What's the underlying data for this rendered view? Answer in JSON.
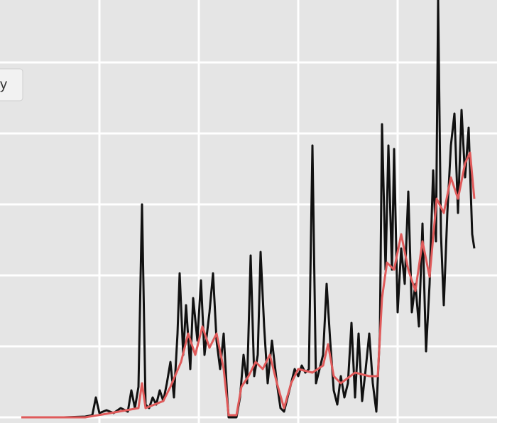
{
  "chart_data": {
    "type": "line",
    "series": [
      {
        "name": "y",
        "color": "#111111",
        "x": [
          30,
          60,
          90,
          120,
          130,
          135,
          140,
          150,
          160,
          170,
          180,
          185,
          190,
          195,
          200,
          205,
          210,
          215,
          220,
          225,
          230,
          235,
          240,
          245,
          250,
          253,
          258,
          262,
          268,
          272,
          278,
          283,
          288,
          295,
          300,
          305,
          310,
          315,
          320,
          322,
          333,
          338,
          343,
          348,
          353,
          358,
          363,
          367,
          372,
          377,
          383,
          390,
          395,
          400,
          405,
          410,
          415,
          420,
          425,
          430,
          435,
          440,
          445,
          450,
          455,
          460,
          465,
          470,
          475,
          480,
          485,
          490,
          495,
          500,
          505,
          510,
          515,
          520,
          525,
          530,
          535,
          538,
          543,
          547,
          552,
          555,
          560,
          565,
          570,
          575,
          580,
          585,
          590,
          595,
          600,
          605,
          610,
          614,
          617,
          621,
          625,
          630,
          635,
          640,
          645,
          650,
          655,
          660,
          665,
          668
        ],
        "values": [
          0,
          0,
          0,
          1,
          3,
          28,
          6,
          10,
          6,
          13,
          8,
          38,
          13,
          43,
          300,
          18,
          13,
          28,
          18,
          38,
          23,
          48,
          78,
          28,
          118,
          203,
          88,
          158,
          68,
          168,
          108,
          193,
          88,
          148,
          203,
          108,
          68,
          118,
          28,
          0,
          0,
          28,
          88,
          48,
          228,
          58,
          88,
          233,
          128,
          48,
          108,
          48,
          13,
          8,
          28,
          48,
          68,
          58,
          73,
          63,
          68,
          383,
          48,
          68,
          88,
          188,
          108,
          38,
          18,
          58,
          28,
          48,
          133,
          28,
          118,
          23,
          68,
          118,
          48,
          8,
          118,
          413,
          208,
          383,
          208,
          378,
          148,
          238,
          188,
          318,
          148,
          188,
          128,
          273,
          93,
          188,
          348,
          248,
          588,
          258,
          158,
          288,
          383,
          428,
          288,
          433,
          338,
          408,
          258,
          238
        ]
      },
      {
        "color": "#e05a5a",
        "x": [
          30,
          120,
          150,
          195,
          200,
          205,
          230,
          240,
          255,
          265,
          275,
          285,
          295,
          305,
          315,
          322,
          333,
          340,
          350,
          360,
          370,
          380,
          390,
          400,
          410,
          420,
          440,
          455,
          462,
          470,
          480,
          500,
          520,
          532,
          538,
          545,
          555,
          565,
          575,
          585,
          595,
          605,
          615,
          625,
          635,
          645,
          655,
          662,
          668
        ],
        "values": [
          0,
          0,
          5,
          13,
          48,
          13,
          23,
          43,
          78,
          118,
          88,
          128,
          98,
          118,
          68,
          3,
          3,
          43,
          58,
          78,
          68,
          88,
          48,
          13,
          48,
          68,
          63,
          73,
          103,
          58,
          48,
          63,
          58,
          58,
          168,
          218,
          208,
          258,
          208,
          178,
          248,
          198,
          308,
          288,
          338,
          308,
          358,
          373,
          308
        ]
      }
    ],
    "xlim": [
      0,
      700
    ],
    "xticks": [
      140,
      280,
      420,
      560
    ],
    "ylim": [
      -8,
      588
    ],
    "yticks": [
      0,
      100,
      200,
      300,
      400,
      500
    ],
    "grid": true,
    "background": "#e5e5e5",
    "legend": "top-left"
  }
}
